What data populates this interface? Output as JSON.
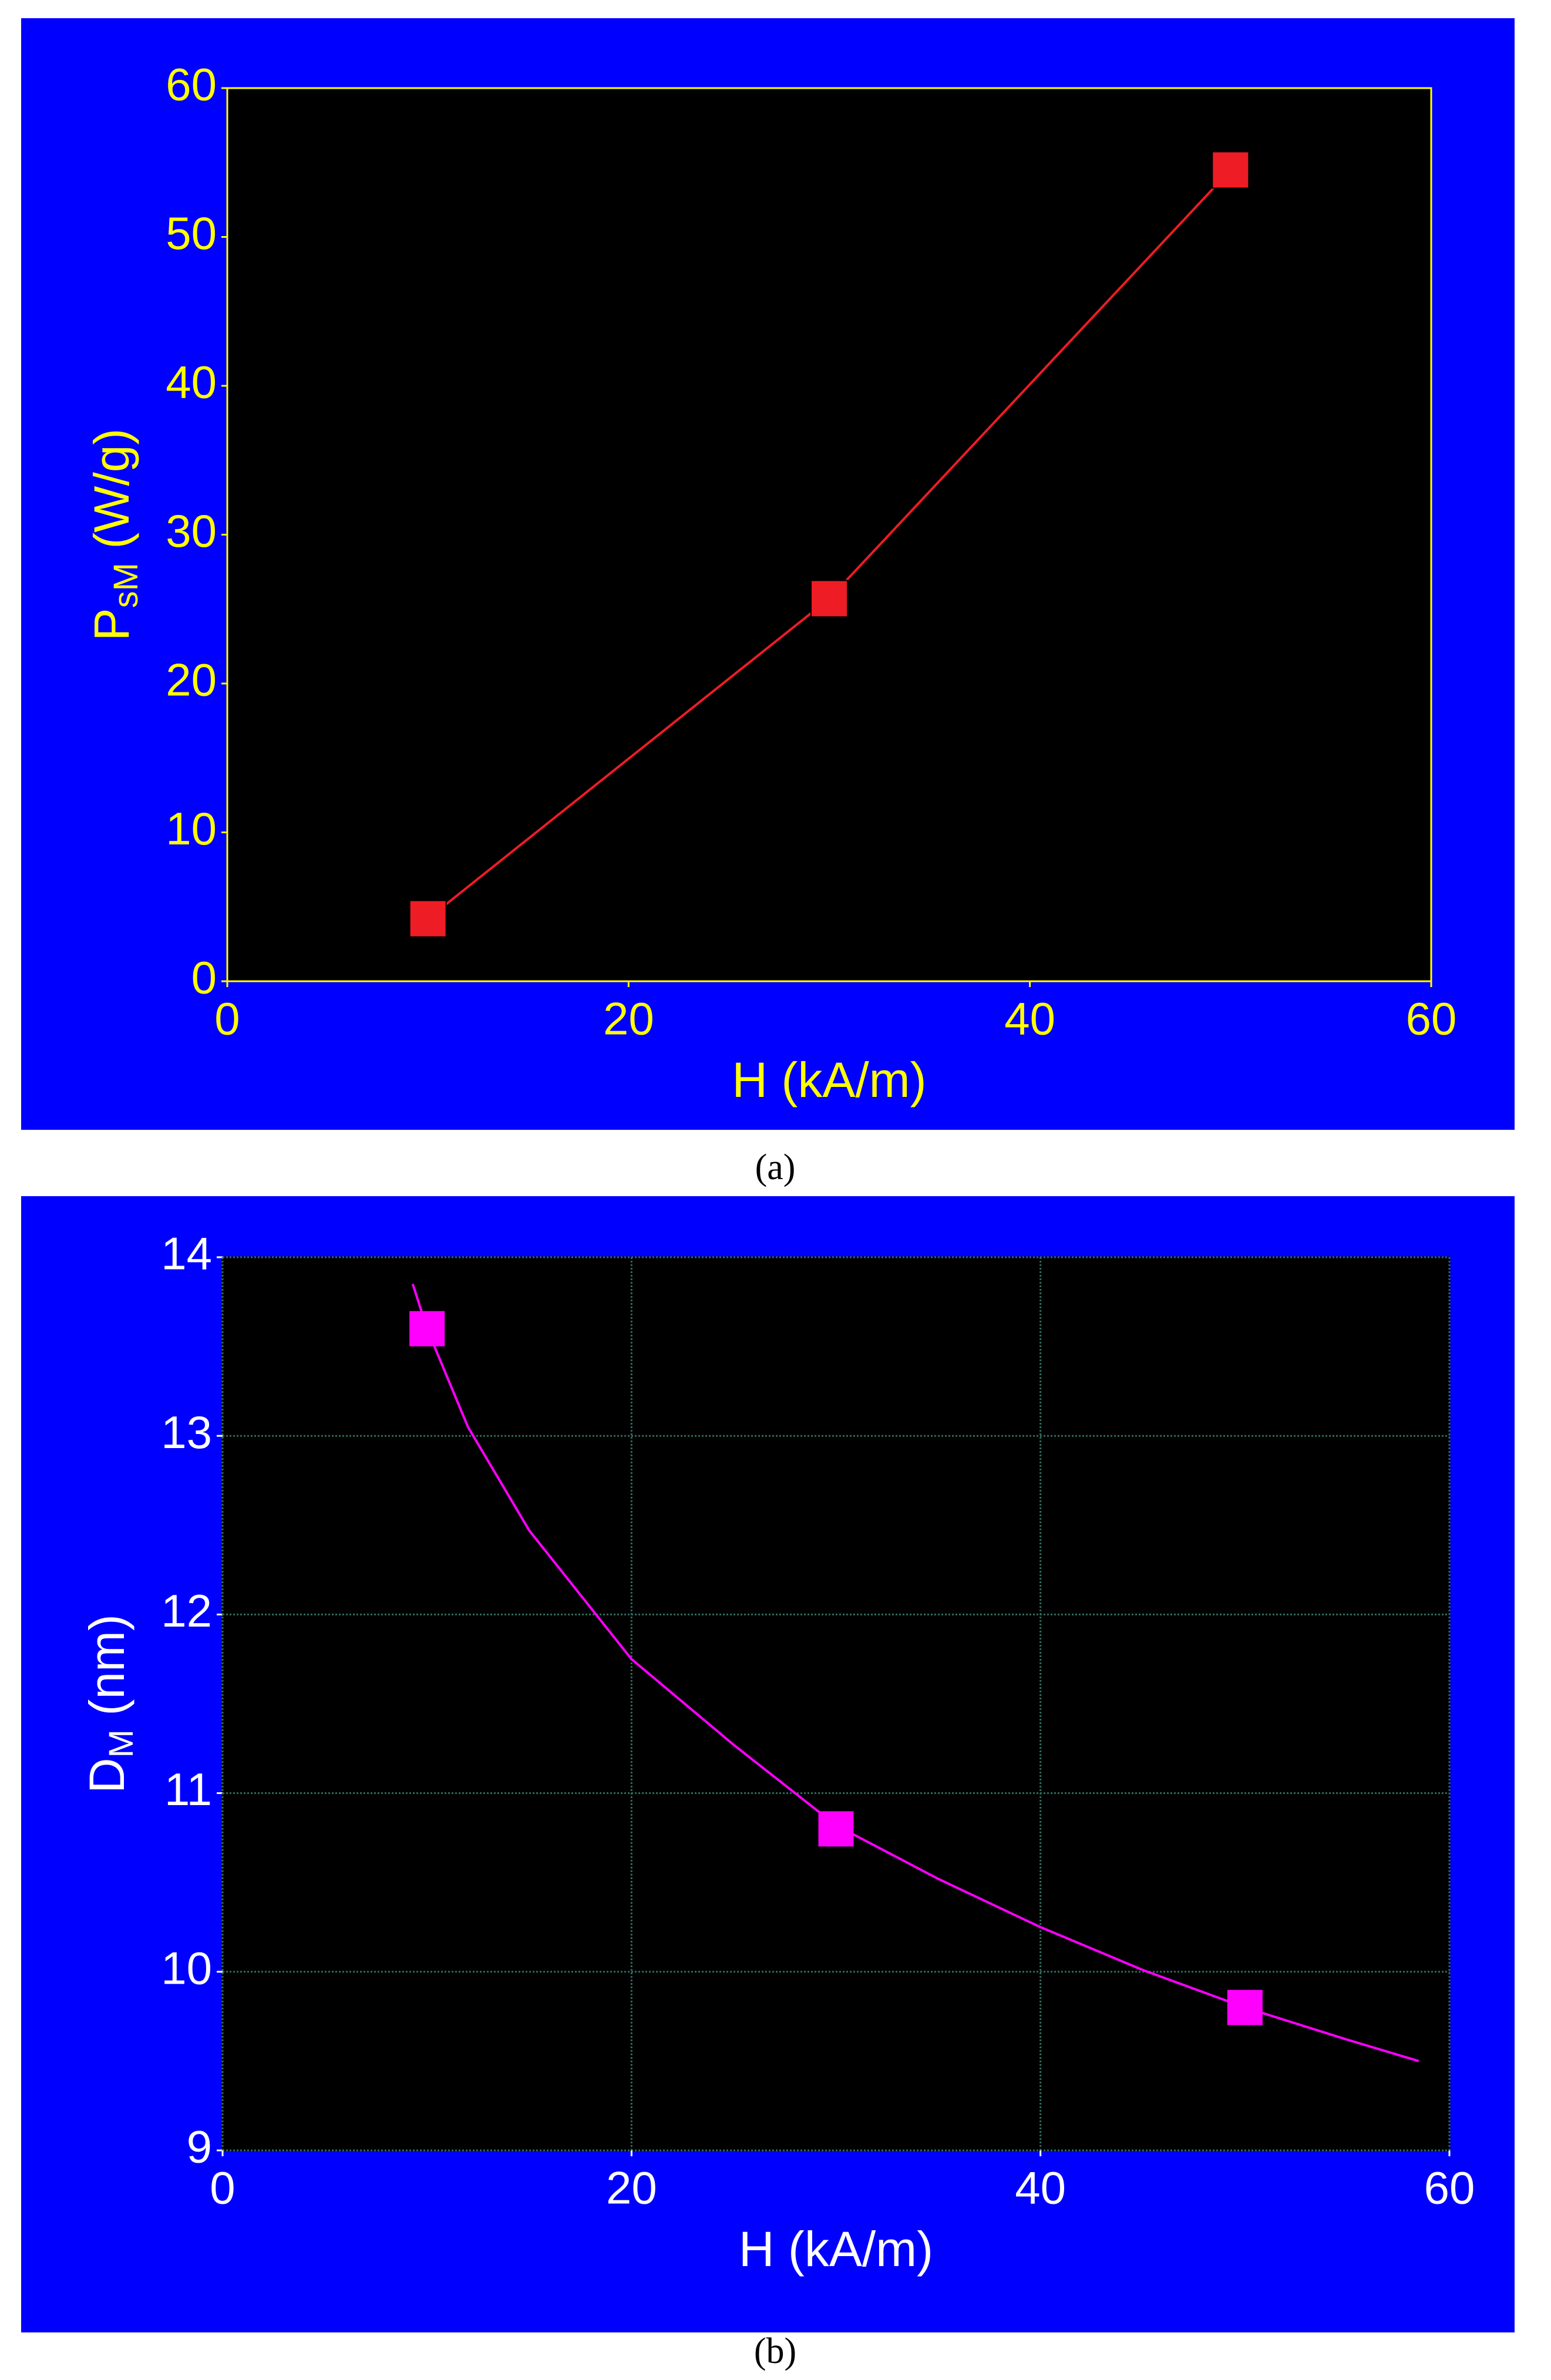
{
  "chart_data": [
    {
      "type": "line",
      "caption": "(a)",
      "xlabel": "H (kA/m)",
      "ylabel": {
        "main": "P",
        "sub": "sM",
        "rest": " (W/g)"
      },
      "xlim": [
        0,
        60
      ],
      "xticks": [
        0,
        20,
        40,
        60
      ],
      "ylim": [
        0,
        60
      ],
      "yticks": [
        0,
        10,
        20,
        30,
        40,
        50,
        60
      ],
      "grid": false,
      "background": "#0000ff",
      "plot_background": "#000000",
      "text_color": "#ffff00",
      "frame_color": "#ffff00",
      "series": [
        {
          "color": "#ee1c24",
          "line": true,
          "marker": true,
          "x": [
            10,
            30,
            50
          ],
          "values": [
            4.2,
            25.7,
            54.5
          ]
        }
      ]
    },
    {
      "type": "scatter",
      "caption": "(b)",
      "xlabel": "H (kA/m)",
      "ylabel": {
        "main": "D",
        "sub": "M",
        "rest": " (nm)"
      },
      "xlim": [
        0,
        60
      ],
      "xticks": [
        0,
        20,
        40,
        60
      ],
      "ylim": [
        9,
        14
      ],
      "yticks": [
        9,
        10,
        11,
        12,
        13,
        14
      ],
      "grid": true,
      "grid_color": "#2e6b5e",
      "background": "#0000ff",
      "plot_background": "#000000",
      "text_color": "#ffffff",
      "frame_color": "#000000",
      "series": [
        {
          "color": "#ff00ff",
          "line": false,
          "marker": true,
          "x": [
            10,
            30,
            50
          ],
          "values": [
            13.6,
            10.8,
            9.8
          ]
        },
        {
          "color": "#ff00ff",
          "line": true,
          "marker": false,
          "x": [
            9.3,
            10,
            12,
            15,
            20,
            25,
            30,
            35,
            40,
            45,
            50,
            55,
            58.5
          ],
          "values": [
            13.85,
            13.6,
            13.05,
            12.47,
            11.75,
            11.27,
            10.82,
            10.52,
            10.25,
            10.01,
            9.8,
            9.62,
            9.5
          ]
        }
      ]
    }
  ]
}
